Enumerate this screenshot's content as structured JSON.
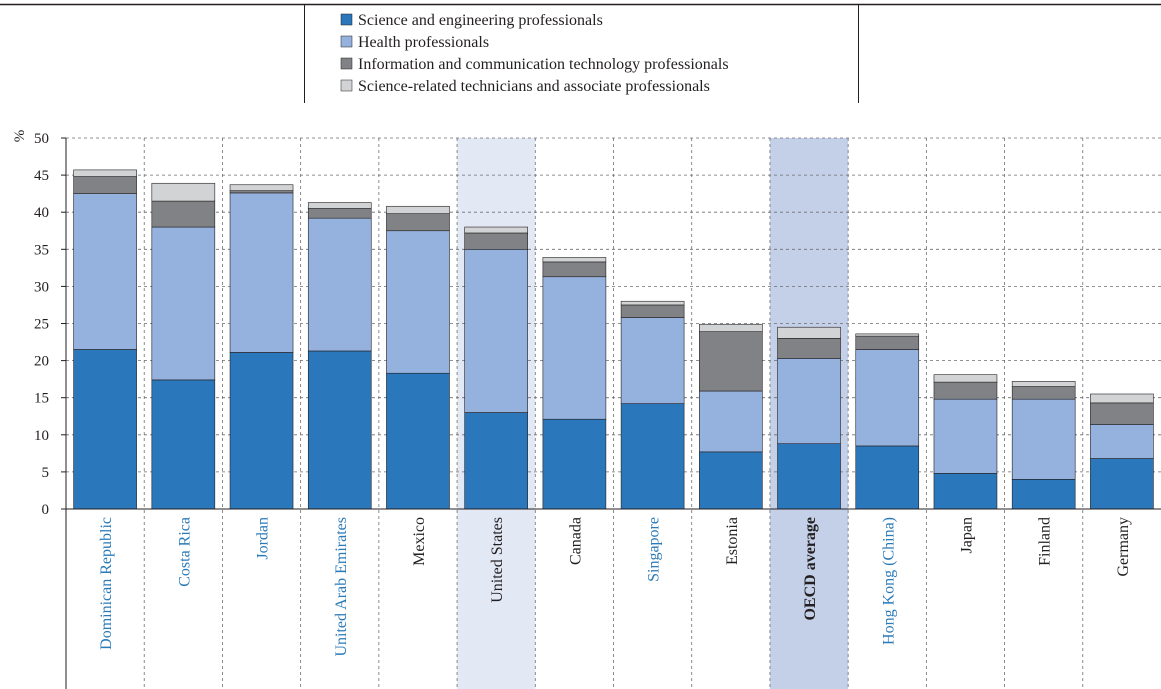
{
  "chart_data": {
    "type": "bar",
    "stacked": true,
    "ylabel": "%",
    "ylim": [
      0,
      50
    ],
    "yticks": [
      0,
      5,
      10,
      15,
      20,
      25,
      30,
      35,
      40,
      45,
      50
    ],
    "grid": true,
    "legend_position": "top-center",
    "categories": [
      "Dominican Republic",
      "Costa Rica",
      "Jordan",
      "United Arab Emirates",
      "Mexico",
      "United States",
      "Canada",
      "Singapore",
      "Estonia",
      "OECD average",
      "Hong Kong (China)",
      "Japan",
      "Finland",
      "Germany"
    ],
    "category_label_colors": [
      "#2a7ab8",
      "#2a7ab8",
      "#2a7ab8",
      "#2a7ab8",
      "#231f20",
      "#231f20",
      "#231f20",
      "#2a7ab8",
      "#231f20",
      "#231f20",
      "#2a7ab8",
      "#231f20",
      "#231f20",
      "#231f20"
    ],
    "category_label_bold": [
      false,
      false,
      false,
      false,
      false,
      false,
      false,
      false,
      false,
      true,
      false,
      false,
      false,
      false
    ],
    "highlight_columns": [
      {
        "index": 5,
        "color": "#e3e8f5"
      },
      {
        "index": 9,
        "color": "#c4d0e8"
      }
    ],
    "series": [
      {
        "name": "Science and engineering professionals",
        "color": "#2a77bb",
        "values": [
          21.5,
          17.4,
          21.1,
          21.3,
          18.3,
          13.0,
          12.1,
          14.2,
          7.7,
          8.8,
          8.5,
          4.8,
          4.0,
          6.8
        ]
      },
      {
        "name": "Health professionals",
        "color": "#95b1dd",
        "values": [
          21.0,
          20.6,
          21.5,
          17.9,
          19.2,
          22.0,
          19.2,
          11.6,
          8.2,
          11.5,
          13.0,
          10.0,
          10.8,
          4.6
        ]
      },
      {
        "name": "Information and communication technology professionals",
        "color": "#808285",
        "values": [
          2.3,
          3.5,
          0.3,
          1.3,
          2.3,
          2.2,
          2.0,
          1.7,
          8.0,
          2.7,
          1.8,
          2.3,
          1.7,
          2.9
        ]
      },
      {
        "name": "Science-related technicians and associate professionals",
        "color": "#d1d3d4",
        "values": [
          0.9,
          2.4,
          0.8,
          0.8,
          1.0,
          0.8,
          0.6,
          0.5,
          1.0,
          1.5,
          0.3,
          1.0,
          0.7,
          1.2
        ]
      }
    ]
  }
}
